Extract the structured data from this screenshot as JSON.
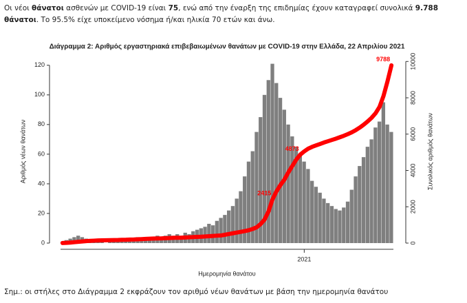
{
  "text": {
    "parts": [
      "Οι νέοι ",
      "θάνατοι",
      " ασθενών με COVID-19 είναι ",
      "75",
      ", ενώ από την έναρξη της επιδημίας έχουν καταγραφεί συνολικά ",
      "9.788 θάνατοι",
      ".  Το 95.5% είχε υποκείμενο νόσημα ή/και ηλικία 70 ετών και άνω."
    ]
  },
  "chart_data": {
    "type": "bar",
    "title": "Διάγραμμα 2: Αριθμός εργαστηριακά επιβεβαιωμένων θανάτων με COVID-19 στην Ελλάδα, 22 Απριλίου 2021",
    "x_label": "Ημερομηνία θανάτου",
    "y_label": "Αριθμός νέων θανάτων",
    "y2_label": "Συνολικός αριθμός θανάτων",
    "categories": [
      null,
      null,
      null,
      null,
      null,
      null,
      null,
      null,
      null,
      null,
      null,
      null,
      null,
      null,
      null,
      null,
      null,
      null,
      null,
      null,
      null,
      null,
      null,
      null,
      null,
      null,
      null,
      null,
      null,
      null,
      null,
      null,
      null,
      null,
      null,
      null,
      null,
      null,
      null,
      null,
      null,
      null,
      null,
      null,
      null,
      null,
      null,
      null,
      null,
      null,
      null,
      null,
      null,
      null,
      null,
      null,
      null,
      null,
      null,
      null,
      null,
      "2021",
      null,
      null,
      null,
      null,
      null,
      null,
      null,
      null,
      null,
      null,
      null,
      null,
      null,
      null,
      null,
      null,
      null,
      null,
      null,
      null,
      null,
      null
    ],
    "ylim": [
      0,
      125
    ],
    "yticks": [
      0,
      20,
      40,
      60,
      80,
      100,
      120
    ],
    "y2lim": [
      0,
      10200
    ],
    "y2ticks": [
      0,
      2000,
      4000,
      6000,
      8000,
      10000
    ],
    "series": [
      {
        "type": "bar",
        "color": "#7f7f7f",
        "values": [
          1,
          2,
          3,
          4,
          5,
          4,
          3,
          2,
          1,
          1,
          1,
          0,
          1,
          1,
          1,
          2,
          1,
          2,
          3,
          4,
          3,
          4,
          3,
          4,
          5,
          4,
          5,
          6,
          5,
          6,
          5,
          7,
          6,
          8,
          9,
          10,
          11,
          13,
          12,
          15,
          17,
          19,
          22,
          25,
          30,
          35,
          45,
          55,
          62,
          75,
          85,
          100,
          110,
          121,
          108,
          98,
          90,
          80,
          72,
          65,
          60,
          55,
          50,
          42,
          38,
          34,
          30,
          27,
          25,
          23,
          22,
          24,
          28,
          36,
          45,
          52,
          58,
          65,
          70,
          78,
          82,
          95,
          80,
          75
        ]
      },
      {
        "type": "line",
        "axis": "y2",
        "color": "#ff0000",
        "values": [
          5,
          15,
          30,
          50,
          70,
          90,
          110,
          125,
          135,
          145,
          150,
          155,
          160,
          165,
          170,
          180,
          185,
          195,
          200,
          210,
          220,
          230,
          240,
          250,
          255,
          260,
          270,
          280,
          290,
          295,
          300,
          310,
          320,
          330,
          340,
          350,
          365,
          380,
          395,
          410,
          420,
          460,
          500,
          540,
          580,
          620,
          660,
          710,
          780,
          870,
          1050,
          1300,
          1750,
          2415,
          2850,
          3200,
          3500,
          3900,
          4250,
          4600,
          4873,
          5050,
          5200,
          5300,
          5380,
          5460,
          5540,
          5610,
          5680,
          5750,
          5830,
          5910,
          6000,
          6100,
          6220,
          6360,
          6520,
          6700,
          6900,
          7150,
          7500,
          8100,
          8900,
          9788
        ],
        "value_labels": [
          null,
          null,
          null,
          null,
          null,
          null,
          null,
          null,
          null,
          null,
          null,
          null,
          null,
          null,
          null,
          null,
          null,
          null,
          null,
          null,
          null,
          null,
          null,
          null,
          null,
          null,
          null,
          null,
          null,
          null,
          null,
          null,
          null,
          null,
          null,
          null,
          null,
          null,
          null,
          null,
          null,
          null,
          null,
          null,
          null,
          null,
          null,
          null,
          null,
          null,
          null,
          null,
          null,
          "2415",
          null,
          null,
          null,
          null,
          null,
          null,
          "4873",
          null,
          null,
          null,
          null,
          null,
          null,
          null,
          null,
          null,
          null,
          null,
          null,
          null,
          null,
          null,
          null,
          null,
          null,
          null,
          null,
          null,
          null,
          "9788"
        ]
      }
    ]
  },
  "note": "Σημ.: οι στήλες στο Διάγραμμα 2 εκφράζουν τον αριθμό νέων θανάτων με βάση την ημερομηνία θανάτου"
}
